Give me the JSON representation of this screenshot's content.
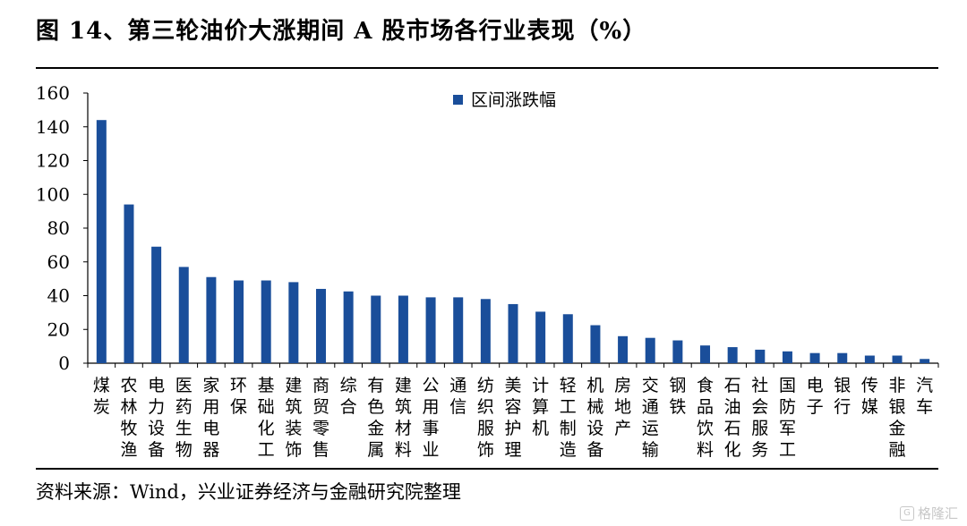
{
  "figure": {
    "title": "图 14、第三轮油价大涨期间 A 股市场各行业表现（%）",
    "source": "资料来源：Wind，兴业证券经济与金融研究院整理",
    "watermark": "格隆汇",
    "watermark_logo": "G"
  },
  "chart_data": {
    "type": "bar",
    "categories": [
      "煤炭",
      "农林牧渔",
      "电力设备",
      "医药生物",
      "家用电器",
      "环保",
      "基础化工",
      "建筑装饰",
      "商贸零售",
      "综合",
      "有色金属",
      "建筑材料",
      "公用事业",
      "通信",
      "纺织服饰",
      "美容护理",
      "计算机",
      "轻工制造",
      "机械设备",
      "房地产",
      "交通运输",
      "钢铁",
      "食品饮料",
      "石油石化",
      "社会服务",
      "国防军工",
      "电子",
      "银行",
      "传媒",
      "非银金融",
      "汽车"
    ],
    "series": [
      {
        "name": "区间涨跌幅",
        "values": [
          144,
          94,
          69,
          57,
          51,
          49,
          49,
          48,
          44,
          42.5,
          40,
          40,
          39,
          39,
          38,
          35,
          30.5,
          29,
          22.5,
          16,
          15,
          13.5,
          10.5,
          9.5,
          8,
          7,
          6,
          6,
          4.5,
          4.5,
          2.5
        ]
      }
    ],
    "ylim": [
      0,
      160
    ],
    "yticks": [
      0,
      20,
      40,
      60,
      80,
      100,
      120,
      140,
      160
    ],
    "legend_position": "top-center",
    "grid": false,
    "bar_color": "#1a4e9a"
  }
}
